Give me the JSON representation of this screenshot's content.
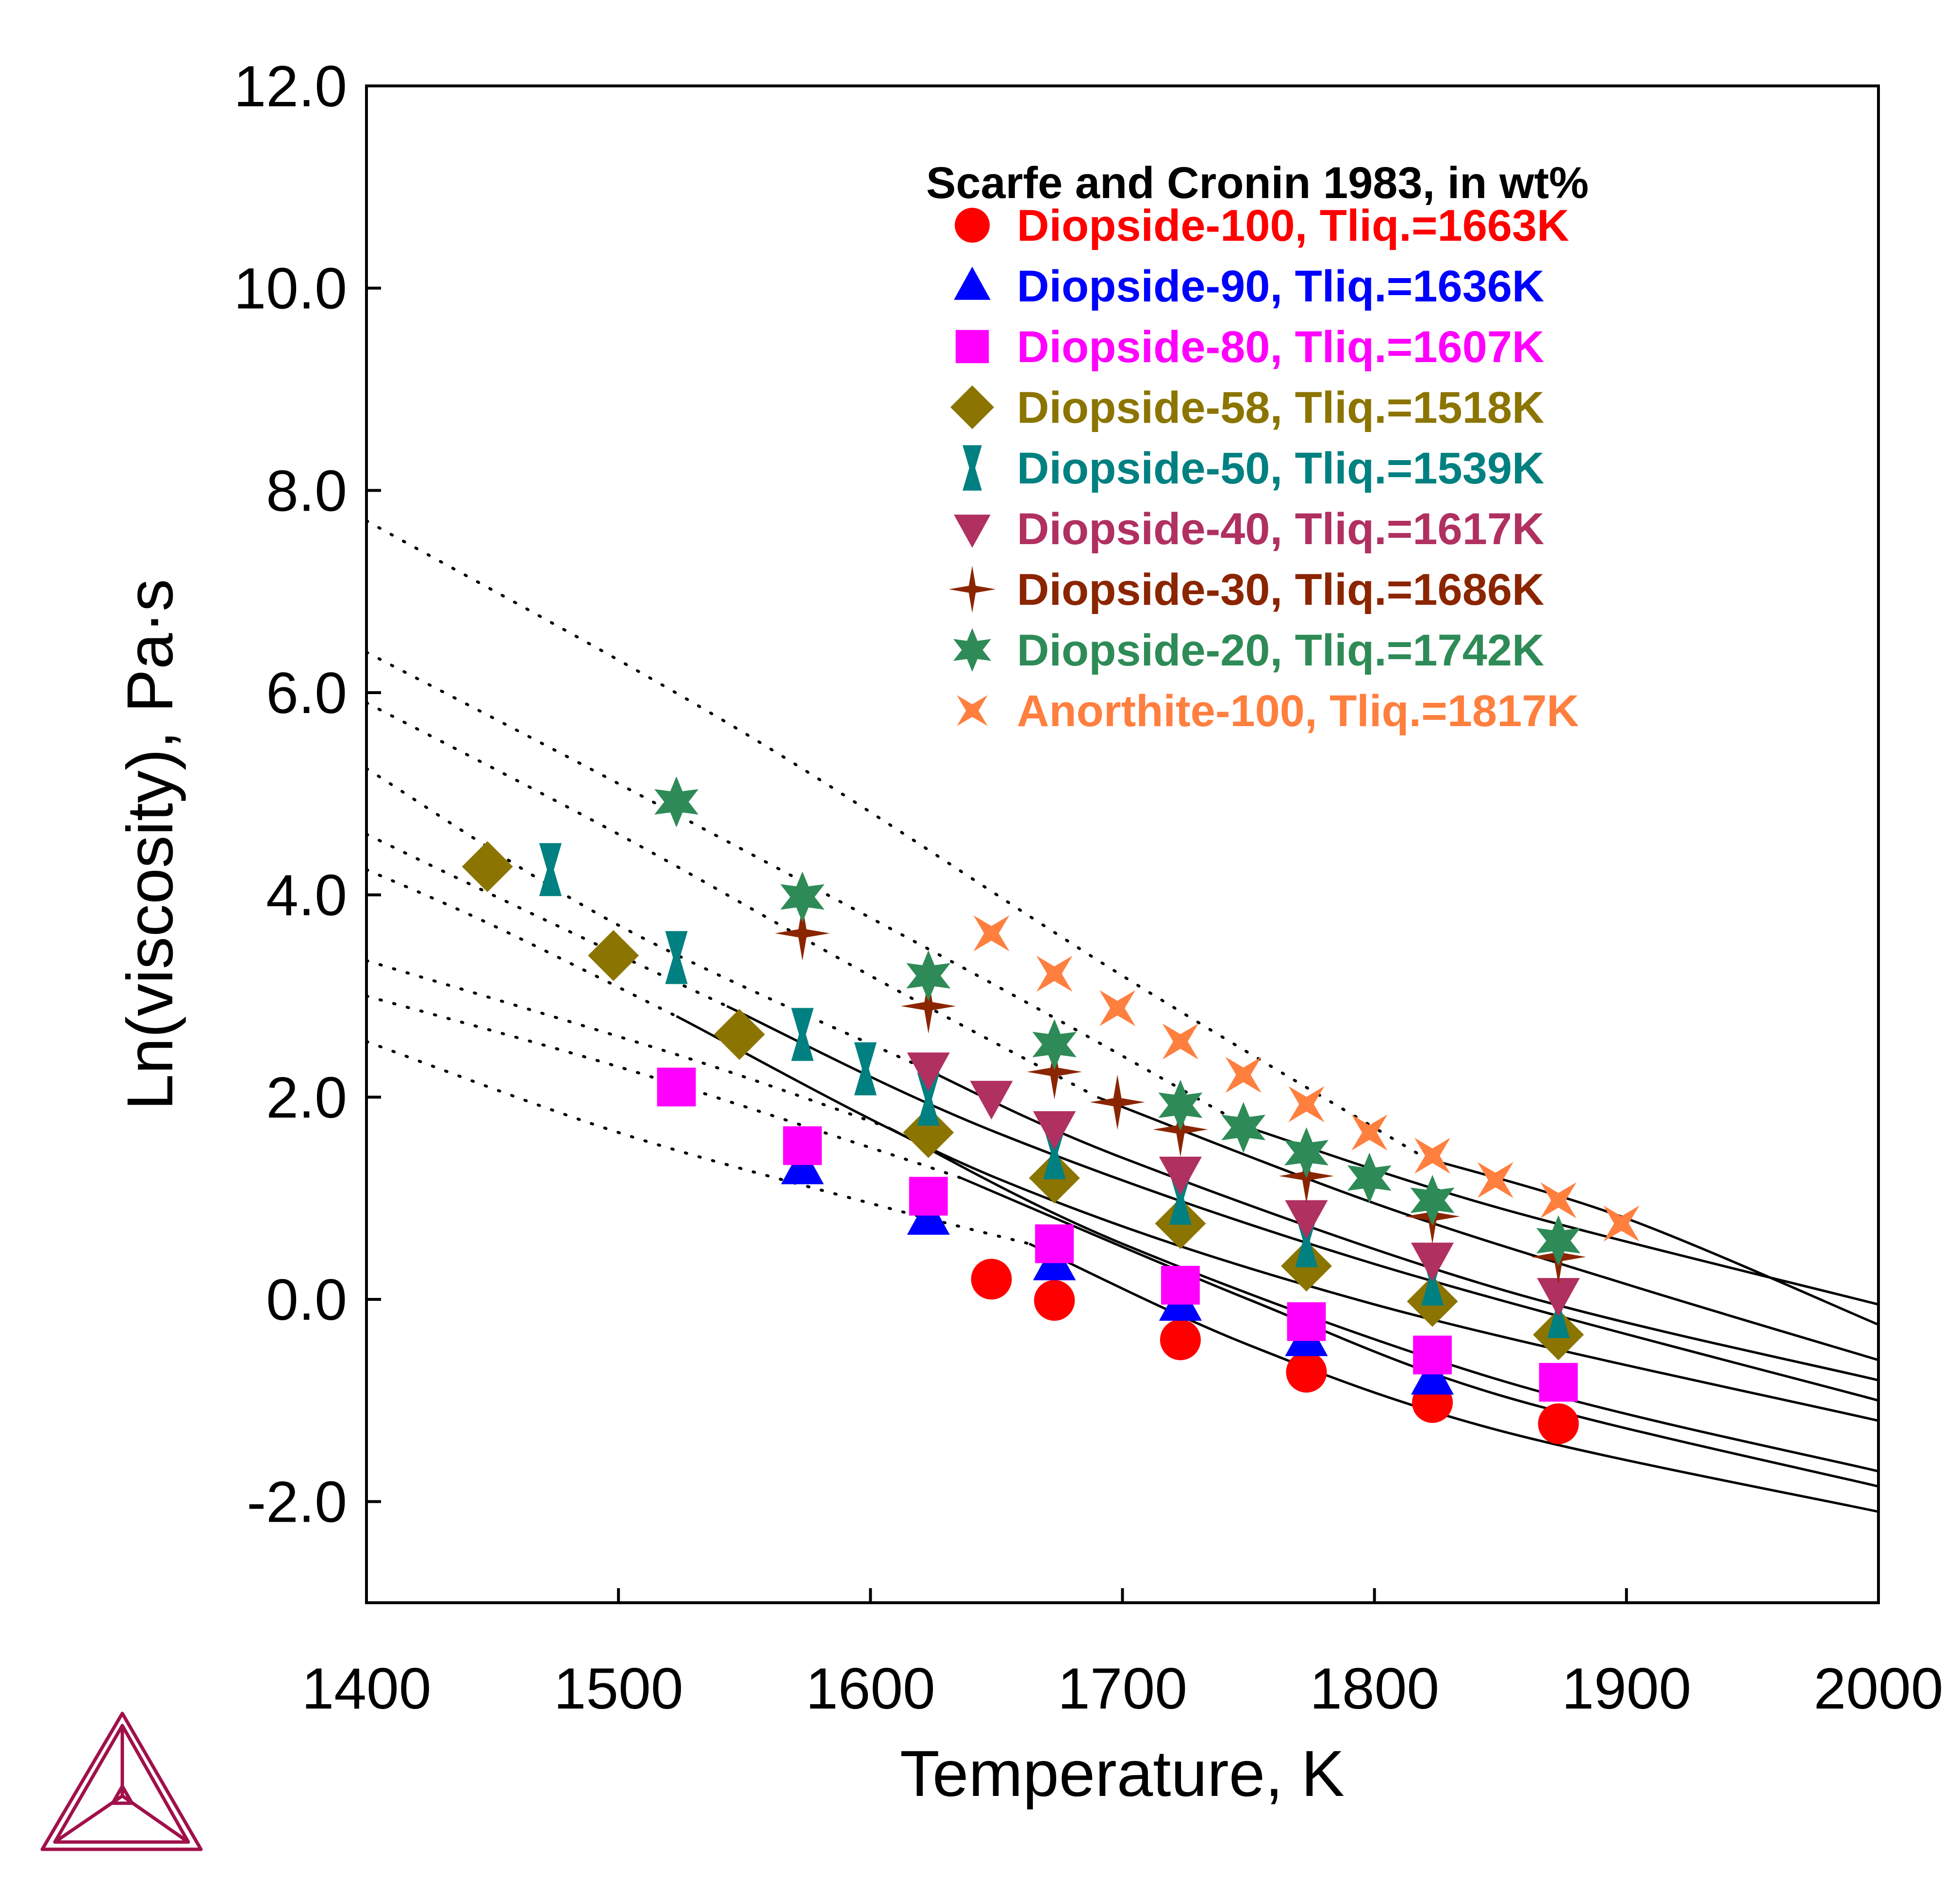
{
  "chart_data": {
    "type": "scatter",
    "title": "",
    "xlabel": "Temperature, K",
    "ylabel": "Ln(viscosity), Pa·s",
    "xlim": [
      1400,
      2000
    ],
    "ylim": [
      -3,
      12
    ],
    "x_ticks": [
      1400,
      1500,
      1600,
      1700,
      1800,
      1900,
      2000
    ],
    "x_tick_labels": [
      "1400",
      "1500",
      "1600",
      "1700",
      "1800",
      "1900",
      "2000"
    ],
    "y_ticks": [
      -2,
      0,
      2,
      4,
      6,
      8,
      10,
      12
    ],
    "y_tick_labels": [
      "-2.0",
      "0.0",
      "2.0",
      "4.0",
      "6.0",
      "8.0",
      "10.0",
      "12.0"
    ],
    "grid": false,
    "legend": {
      "title": "Scarfe and Cronin 1983, in wt%",
      "position": "top-right"
    },
    "series": [
      {
        "name": "Diopside-100, Tliq.=1663K",
        "color": "#ff0000",
        "marker": "circle",
        "x": [
          1648,
          1673,
          1723,
          1773,
          1823,
          1873
        ],
        "y": [
          0.2,
          -0.01,
          -0.4,
          -0.72,
          -1.02,
          -1.23
        ]
      },
      {
        "name": "Diopside-90, Tliq.=1636K",
        "color": "#0000ff",
        "marker": "triangle-up",
        "x": [
          1573,
          1623,
          1673,
          1723,
          1773,
          1823
        ],
        "y": [
          1.3,
          0.8,
          0.35,
          -0.05,
          -0.4,
          -0.78
        ]
      },
      {
        "name": "Diopside-80, Tliq.=1607K",
        "color": "#ff00ff",
        "marker": "square",
        "x": [
          1523,
          1573,
          1623,
          1673,
          1723,
          1773,
          1823,
          1873
        ],
        "y": [
          2.1,
          1.52,
          1.02,
          0.55,
          0.14,
          -0.22,
          -0.55,
          -0.82
        ]
      },
      {
        "name": "Diopside-58, Tliq.=1518K",
        "color": "#8b7500",
        "marker": "diamond",
        "x": [
          1448,
          1498,
          1548,
          1623,
          1673,
          1723,
          1773,
          1823,
          1873
        ],
        "y": [
          4.28,
          3.4,
          2.62,
          1.65,
          1.2,
          0.75,
          0.33,
          -0.02,
          -0.35
        ]
      },
      {
        "name": "Diopside-50, Tliq.=1539K",
        "color": "#008080",
        "marker": "hourglass",
        "x": [
          1473,
          1523,
          1573,
          1598,
          1623,
          1673,
          1723,
          1773,
          1823,
          1873
        ],
        "y": [
          4.25,
          3.38,
          2.62,
          2.28,
          1.98,
          1.45,
          1.0,
          0.58,
          0.2,
          -0.12
        ]
      },
      {
        "name": "Diopside-40, Tliq.=1617K",
        "color": "#b03060",
        "marker": "triangle-down",
        "x": [
          1623,
          1648,
          1673,
          1723,
          1773,
          1823,
          1873
        ],
        "y": [
          2.28,
          2.0,
          1.7,
          1.25,
          0.82,
          0.4,
          0.05
        ]
      },
      {
        "name": "Diopside-30, Tliq.=1686K",
        "color": "#8b2500",
        "marker": "star4",
        "x": [
          1573,
          1623,
          1673,
          1698,
          1723,
          1773,
          1823,
          1873
        ],
        "y": [
          3.62,
          2.9,
          2.25,
          1.95,
          1.68,
          1.22,
          0.82,
          0.42
        ]
      },
      {
        "name": "Diopside-20, Tliq.=1742K",
        "color": "#2e8b57",
        "marker": "star6",
        "x": [
          1523,
          1573,
          1623,
          1673,
          1723,
          1748,
          1773,
          1798,
          1823,
          1873
        ],
        "y": [
          4.92,
          3.98,
          3.2,
          2.52,
          1.92,
          1.7,
          1.45,
          1.2,
          0.98,
          0.58
        ]
      },
      {
        "name": "Anorthite-100, Tliq.=1817K",
        "color": "#ff7f3f",
        "marker": "star4x",
        "x": [
          1648,
          1673,
          1698,
          1723,
          1748,
          1773,
          1798,
          1823,
          1848,
          1873,
          1898
        ],
        "y": [
          3.62,
          3.22,
          2.88,
          2.55,
          2.22,
          1.93,
          1.65,
          1.42,
          1.18,
          0.98,
          0.75
        ]
      }
    ],
    "fit_curves": [
      {
        "solid": [
          [
            1663,
            0.55
          ],
          [
            1750,
            -0.45
          ],
          [
            1850,
            -1.3
          ],
          [
            2000,
            -2.1
          ]
        ],
        "dotted": [
          [
            1400,
            2.55
          ],
          [
            1500,
            1.65
          ],
          [
            1600,
            0.95
          ],
          [
            1663,
            0.55
          ]
        ]
      },
      {
        "solid": [
          [
            1636,
            1.2
          ],
          [
            1750,
            0.0
          ],
          [
            1850,
            -0.95
          ],
          [
            2000,
            -1.85
          ]
        ],
        "dotted": [
          [
            1400,
            3.0
          ],
          [
            1500,
            2.3
          ],
          [
            1600,
            1.5
          ],
          [
            1636,
            1.2
          ]
        ]
      },
      {
        "solid": [
          [
            1607,
            1.7
          ],
          [
            1700,
            0.55
          ],
          [
            1850,
            -0.8
          ],
          [
            2000,
            -1.7
          ]
        ],
        "dotted": [
          [
            1400,
            3.35
          ],
          [
            1500,
            2.6
          ],
          [
            1550,
            2.2
          ],
          [
            1607,
            1.7
          ]
        ]
      },
      {
        "solid": [
          [
            1523,
            2.8
          ],
          [
            1650,
            1.2
          ],
          [
            1800,
            -0.05
          ],
          [
            2000,
            -1.2
          ]
        ],
        "dotted": [
          [
            1400,
            4.25
          ],
          [
            1450,
            3.7
          ],
          [
            1523,
            2.8
          ]
        ]
      },
      {
        "solid": [
          [
            1543,
            2.9
          ],
          [
            1650,
            1.65
          ],
          [
            1800,
            0.35
          ],
          [
            2000,
            -1.0
          ]
        ],
        "dotted": [
          [
            1400,
            4.6
          ],
          [
            1450,
            4.0
          ],
          [
            1543,
            2.9
          ]
        ]
      },
      {
        "solid": [
          [
            1620,
            2.3
          ],
          [
            1700,
            1.4
          ],
          [
            1850,
            0.1
          ],
          [
            2000,
            -0.8
          ]
        ],
        "dotted": [
          [
            1400,
            5.25
          ],
          [
            1500,
            3.7
          ],
          [
            1620,
            2.3
          ]
        ]
      },
      {
        "solid": [
          [
            1690,
            2.0
          ],
          [
            1800,
            0.95
          ],
          [
            1900,
            0.15
          ],
          [
            2000,
            -0.6
          ]
        ],
        "dotted": [
          [
            1400,
            5.9
          ],
          [
            1500,
            4.6
          ],
          [
            1600,
            3.2
          ],
          [
            1690,
            2.0
          ]
        ]
      },
      {
        "solid": [
          [
            1750,
            1.7
          ],
          [
            1850,
            0.9
          ],
          [
            2000,
            -0.05
          ]
        ],
        "dotted": [
          [
            1400,
            6.4
          ],
          [
            1500,
            5.1
          ],
          [
            1650,
            3.1
          ],
          [
            1750,
            1.7
          ]
        ]
      },
      {
        "solid": [
          [
            1820,
            1.4
          ],
          [
            1900,
            0.8
          ],
          [
            2000,
            -0.25
          ]
        ],
        "dotted": [
          [
            1400,
            7.7
          ],
          [
            1550,
            5.6
          ],
          [
            1700,
            3.2
          ],
          [
            1820,
            1.4
          ]
        ]
      }
    ]
  }
}
